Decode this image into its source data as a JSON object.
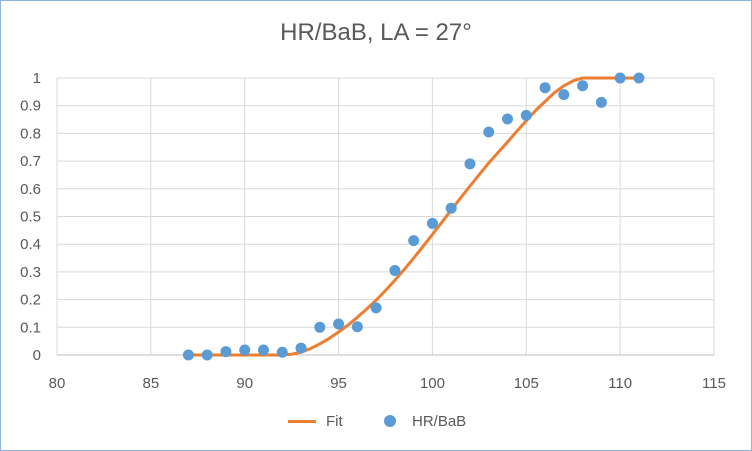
{
  "chart_data": {
    "type": "scatter",
    "title": "HR/BaB, LA = 27°",
    "xlabel": "",
    "ylabel": "",
    "xlim": [
      80,
      115
    ],
    "ylim": [
      0,
      1
    ],
    "x_ticks": [
      "80",
      "85",
      "90",
      "95",
      "100",
      "105",
      "110",
      "115"
    ],
    "y_ticks": [
      "0",
      "0.1",
      "0.2",
      "0.3",
      "0.4",
      "0.5",
      "0.6",
      "0.7",
      "0.8",
      "0.9",
      "1"
    ],
    "grid": true,
    "legend_position": "bottom",
    "series": [
      {
        "name": "Fit",
        "kind": "line",
        "color": "#ed7d31",
        "x": [
          87,
          88,
          89,
          90,
          91,
          92,
          92.5,
          93,
          93.5,
          94,
          94.5,
          95,
          95.5,
          96,
          96.5,
          97,
          97.5,
          98,
          98.5,
          99,
          99.5,
          100,
          100.5,
          101,
          101.5,
          102,
          102.5,
          103,
          103.5,
          104,
          104.5,
          105,
          105.5,
          106,
          106.5,
          107,
          107.5,
          108,
          109,
          110,
          111
        ],
        "y": [
          0,
          0,
          0,
          0,
          0,
          0,
          0.003,
          0.01,
          0.023,
          0.04,
          0.06,
          0.083,
          0.108,
          0.136,
          0.166,
          0.198,
          0.233,
          0.27,
          0.309,
          0.35,
          0.392,
          0.435,
          0.479,
          0.523,
          0.567,
          0.61,
          0.652,
          0.693,
          0.731,
          0.769,
          0.808,
          0.846,
          0.883,
          0.915,
          0.947,
          0.972,
          0.99,
          1,
          1,
          1,
          1
        ]
      },
      {
        "name": "HR/BaB",
        "kind": "scatter",
        "color": "#5b9bd5",
        "x": [
          87,
          88,
          89,
          90,
          91,
          92,
          93,
          94,
          95,
          96,
          97,
          98,
          99,
          100,
          101,
          102,
          103,
          104,
          105,
          106,
          107,
          108,
          109,
          110,
          111
        ],
        "y": [
          0,
          0,
          0.012,
          0.018,
          0.018,
          0.01,
          0.025,
          0.1,
          0.112,
          0.102,
          0.17,
          0.305,
          0.413,
          0.475,
          0.53,
          0.69,
          0.805,
          0.852,
          0.865,
          0.965,
          0.94,
          0.972,
          0.912,
          1,
          1
        ]
      }
    ]
  }
}
